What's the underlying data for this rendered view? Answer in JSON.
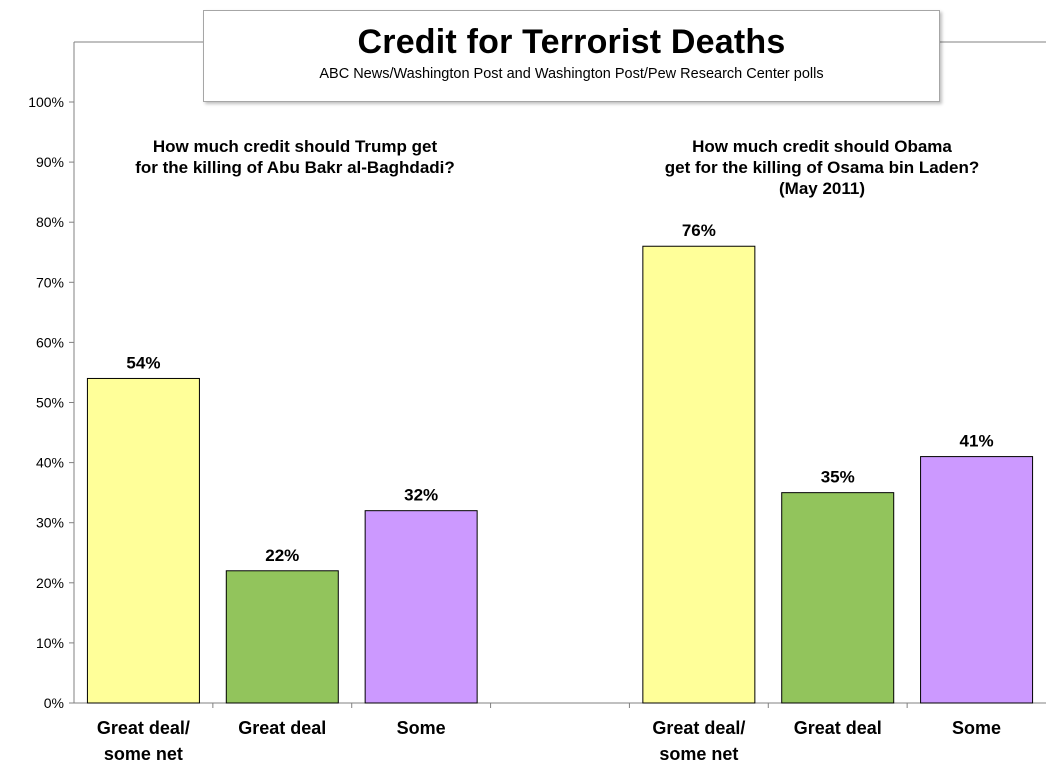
{
  "chart_data": {
    "type": "bar",
    "title": "Credit for Terrorist Deaths",
    "subtitle": "ABC News/Washington Post and Washington Post/Pew Research Center polls",
    "ylim": [
      0,
      100
    ],
    "yticks": [
      "0%",
      "10%",
      "20%",
      "30%",
      "40%",
      "50%",
      "60%",
      "70%",
      "80%",
      "90%",
      "100%"
    ],
    "grid": false,
    "colors": {
      "great_deal_some_net": "#ffff99",
      "great_deal": "#92c45c",
      "some": "#cc99ff",
      "bar_outline": "#000000",
      "axis": "#808080"
    },
    "panels": [
      {
        "question_lines": [
          "How much credit should Trump get",
          "for the killing of Abu Bakr al-Baghdadi?"
        ],
        "categories": [
          {
            "label_lines": [
              "Great deal/",
              "some net"
            ],
            "value": 54,
            "data_label": "54%",
            "color_key": "great_deal_some_net"
          },
          {
            "label_lines": [
              "Great deal"
            ],
            "value": 22,
            "data_label": "22%",
            "color_key": "great_deal"
          },
          {
            "label_lines": [
              "Some"
            ],
            "value": 32,
            "data_label": "32%",
            "color_key": "some"
          }
        ]
      },
      {
        "question_lines": [
          "How much credit should Obama",
          "get for the killing of Osama bin Laden?",
          "(May 2011)"
        ],
        "categories": [
          {
            "label_lines": [
              "Great deal/",
              "some net"
            ],
            "value": 76,
            "data_label": "76%",
            "color_key": "great_deal_some_net"
          },
          {
            "label_lines": [
              "Great deal"
            ],
            "value": 35,
            "data_label": "35%",
            "color_key": "great_deal"
          },
          {
            "label_lines": [
              "Some"
            ],
            "value": 41,
            "data_label": "41%",
            "color_key": "some"
          }
        ]
      }
    ]
  }
}
